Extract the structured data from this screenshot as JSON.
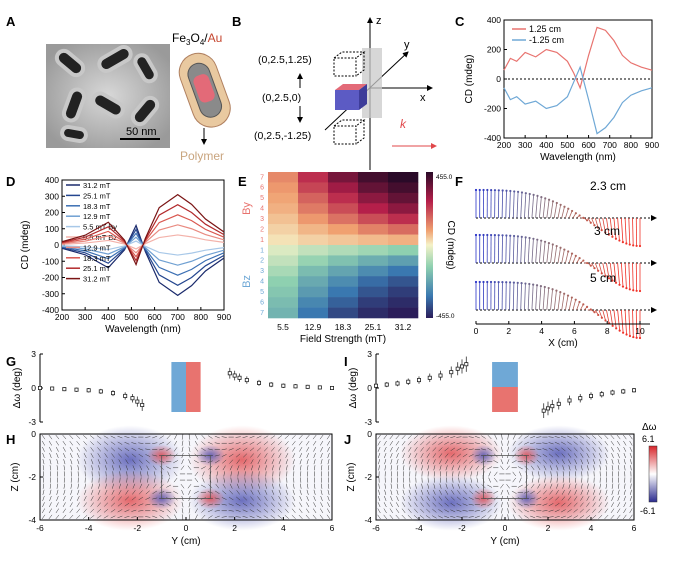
{
  "panels": {
    "A": {
      "label": "A",
      "scale_bar": "50 nm",
      "material_a": "Fe",
      "material_a_sub": "3",
      "material_b": "O",
      "material_b_sub": "4",
      "slash": "/",
      "material_c": "Au",
      "polymer": "Polymer"
    },
    "B": {
      "label": "B",
      "axes": {
        "z": "z",
        "y": "y",
        "x": "x",
        "k": "k"
      },
      "positions": [
        "(0,2.5,1.25)",
        "(0,2.5,0)",
        "(0,2.5,-1.25)"
      ]
    },
    "C": {
      "label": "C"
    },
    "D": {
      "label": "D"
    },
    "E": {
      "label": "E"
    },
    "F": {
      "label": "F"
    },
    "G": {
      "label": "G"
    },
    "H": {
      "label": "H"
    },
    "I": {
      "label": "I"
    },
    "J": {
      "label": "J"
    }
  },
  "colors": {
    "red": "#e8736f",
    "blue": "#6fa8d6",
    "pos": "#d7262b",
    "neg": "#2b2b8f"
  },
  "chart_data": [
    {
      "id": "C",
      "type": "line",
      "xlabel": "Wavelength (nm)",
      "ylabel": "CD (mdeg)",
      "xlim": [
        200,
        900
      ],
      "ylim": [
        -400,
        400
      ],
      "xticks": [
        200,
        300,
        400,
        500,
        600,
        700,
        800,
        900
      ],
      "yticks": [
        -400,
        -200,
        0,
        200,
        400
      ],
      "legend_position": "top-left",
      "series": [
        {
          "name": "1.25 cm",
          "color": "#e8736f",
          "x": [
            200,
            230,
            260,
            300,
            350,
            400,
            450,
            500,
            530,
            560,
            600,
            640,
            680,
            720,
            760,
            800,
            850,
            900
          ],
          "y": [
            60,
            140,
            120,
            180,
            150,
            200,
            180,
            120,
            40,
            -60,
            160,
            350,
            330,
            260,
            160,
            110,
            80,
            60
          ]
        },
        {
          "name": "-1.25 cm",
          "color": "#6fa8d6",
          "x": [
            200,
            230,
            260,
            300,
            350,
            400,
            450,
            500,
            530,
            560,
            600,
            640,
            680,
            720,
            760,
            800,
            850,
            900
          ],
          "y": [
            -60,
            -140,
            -120,
            -170,
            -150,
            -200,
            -180,
            -120,
            -20,
            80,
            -140,
            -370,
            -330,
            -260,
            -160,
            -110,
            -80,
            -60
          ]
        }
      ]
    },
    {
      "id": "D",
      "type": "line",
      "xlabel": "Wavelength (nm)",
      "ylabel": "CD (mdeg)",
      "xlim": [
        200,
        900
      ],
      "ylim": [
        -400,
        400
      ],
      "xticks": [
        200,
        300,
        400,
        500,
        600,
        700,
        800,
        900
      ],
      "yticks": [
        -400,
        -300,
        -200,
        -100,
        0,
        100,
        200,
        300,
        400
      ],
      "legend_position": "top-left",
      "x": [
        200,
        300,
        400,
        470,
        520,
        560,
        620,
        700,
        760,
        820,
        900
      ],
      "series": [
        {
          "name": "31.2 mT",
          "color": "#1a2a6c",
          "y": [
            -20,
            -60,
            -140,
            -30,
            120,
            -40,
            -230,
            -310,
            -250,
            -160,
            -80
          ]
        },
        {
          "name": "25.1 mT",
          "color": "#24468f",
          "y": [
            -16,
            -48,
            -112,
            -24,
            96,
            -32,
            -184,
            -248,
            -200,
            -128,
            -64
          ]
        },
        {
          "name": "18.3 mT",
          "color": "#3b6fb3",
          "y": [
            -12,
            -36,
            -84,
            -18,
            72,
            -24,
            -138,
            -186,
            -150,
            -96,
            -48
          ]
        },
        {
          "name": "12.9 mT",
          "color": "#6fa0d2",
          "y": [
            -8,
            -24,
            -56,
            -12,
            48,
            -16,
            -92,
            -124,
            -100,
            -64,
            -32
          ]
        },
        {
          "name": "5.5 mT By",
          "color": "#a8c8e8",
          "y": [
            -4,
            -12,
            -28,
            -6,
            24,
            -8,
            -46,
            -62,
            -50,
            -32,
            -16
          ]
        },
        {
          "name": "5.5 mT Bz",
          "color": "#f3b2aa",
          "y": [
            4,
            12,
            28,
            6,
            -24,
            8,
            46,
            62,
            50,
            32,
            16
          ]
        },
        {
          "name": "12.9 mT",
          "color": "#e98a80",
          "y": [
            8,
            24,
            56,
            12,
            -48,
            16,
            92,
            124,
            100,
            64,
            32
          ]
        },
        {
          "name": "18.3 mT",
          "color": "#d9574f",
          "y": [
            12,
            36,
            84,
            18,
            -72,
            24,
            138,
            186,
            150,
            96,
            48
          ]
        },
        {
          "name": "25.1 mT",
          "color": "#b22a2c",
          "y": [
            16,
            48,
            112,
            24,
            -96,
            32,
            184,
            248,
            200,
            128,
            64
          ]
        },
        {
          "name": "31.2 mT",
          "color": "#7a1414",
          "y": [
            20,
            60,
            140,
            30,
            -120,
            40,
            230,
            310,
            250,
            160,
            80
          ]
        }
      ]
    },
    {
      "id": "E",
      "type": "heatmap",
      "xlabel": "Field Strength (mT)",
      "ylabel": "CD (mdeg)",
      "xticks": [
        "5.5",
        "12.9",
        "18.3",
        "25.1",
        "31.2"
      ],
      "row_group_top": "By",
      "row_group_bottom": "Bz",
      "yticks_top": [
        "7",
        "6",
        "5",
        "4",
        "3",
        "2",
        "1"
      ],
      "yticks_bottom": [
        "1",
        "2",
        "3",
        "4",
        "5",
        "6",
        "7"
      ],
      "colorbar_max": "455.0",
      "colorbar_min": "-455.0",
      "values": [
        [
          180,
          300,
          380,
          430,
          455
        ],
        [
          160,
          270,
          340,
          400,
          430
        ],
        [
          140,
          230,
          300,
          360,
          400
        ],
        [
          120,
          200,
          260,
          320,
          360
        ],
        [
          90,
          160,
          210,
          260,
          300
        ],
        [
          60,
          110,
          150,
          190,
          220
        ],
        [
          30,
          60,
          80,
          100,
          120
        ],
        [
          -30,
          -60,
          -80,
          -100,
          -120
        ],
        [
          -60,
          -110,
          -150,
          -190,
          -220
        ],
        [
          -90,
          -160,
          -210,
          -260,
          -300
        ],
        [
          -120,
          -200,
          -260,
          -320,
          -360
        ],
        [
          -140,
          -230,
          -300,
          -360,
          -400
        ],
        [
          -160,
          -270,
          -340,
          -400,
          -430
        ],
        [
          -180,
          -300,
          -380,
          -430,
          -455
        ]
      ]
    },
    {
      "id": "F",
      "type": "line",
      "xlabel": "X (cm)",
      "xlim": [
        0,
        10
      ],
      "xticks": [
        0,
        2,
        4,
        6,
        8,
        10
      ],
      "rows": [
        "2.3 cm",
        "3 cm",
        "5 cm"
      ]
    },
    {
      "id": "G",
      "type": "scatter",
      "ylabel": "Δω (deg)",
      "xlim": [
        -6,
        6
      ],
      "ylim": [
        -3,
        3
      ],
      "yticks": [
        -3,
        0,
        3
      ],
      "left": {
        "x": [
          -6,
          -5.5,
          -5,
          -4.5,
          -4,
          -3.5,
          -3,
          -2.5,
          -2.2,
          -2.0,
          -1.8
        ],
        "y": [
          0,
          -0.05,
          -0.1,
          -0.15,
          -0.2,
          -0.3,
          -0.45,
          -0.7,
          -0.9,
          -1.2,
          -1.5
        ]
      },
      "right": {
        "x": [
          1.8,
          2.0,
          2.2,
          2.5,
          3,
          3.5,
          4,
          4.5,
          5,
          5.5,
          6
        ],
        "y": [
          1.3,
          1.1,
          0.9,
          0.7,
          0.45,
          0.3,
          0.2,
          0.15,
          0.1,
          0.05,
          0
        ]
      }
    },
    {
      "id": "H",
      "type": "heatmap",
      "xlabel": "Y (cm)",
      "ylabel": "Z (cm)",
      "xlim": [
        -6,
        6
      ],
      "ylim": [
        -4,
        0
      ],
      "xticks": [
        -6,
        -4,
        -2,
        0,
        2,
        4,
        6
      ],
      "yticks": [
        0,
        -2,
        -4
      ]
    },
    {
      "id": "I",
      "type": "scatter",
      "ylabel": "Δω (deg)",
      "xlim": [
        -6,
        6
      ],
      "ylim": [
        -3,
        3
      ],
      "yticks": [
        -3,
        0,
        3
      ],
      "left": {
        "x": [
          -6,
          -5.5,
          -5,
          -4.5,
          -4,
          -3.5,
          -3,
          -2.5,
          -2.2,
          -2.0,
          -1.8
        ],
        "y": [
          0.2,
          0.3,
          0.4,
          0.55,
          0.7,
          0.9,
          1.1,
          1.4,
          1.7,
          1.9,
          2.1
        ]
      },
      "right": {
        "x": [
          1.8,
          2.0,
          2.2,
          2.5,
          3,
          3.5,
          4,
          4.5,
          5,
          5.5,
          6
        ],
        "y": [
          -2.0,
          -1.8,
          -1.6,
          -1.4,
          -1.1,
          -0.9,
          -0.7,
          -0.55,
          -0.4,
          -0.3,
          -0.2
        ]
      }
    },
    {
      "id": "J",
      "type": "heatmap",
      "xlabel": "Y (cm)",
      "ylabel": "Z (cm)",
      "xlim": [
        -6,
        6
      ],
      "ylim": [
        -4,
        0
      ],
      "xticks": [
        -6,
        -4,
        -2,
        0,
        2,
        4,
        6
      ],
      "yticks": [
        0,
        -2,
        -4
      ],
      "colorbar_label": "Δω",
      "colorbar_max": "6.1",
      "colorbar_min": "-6.1"
    }
  ]
}
